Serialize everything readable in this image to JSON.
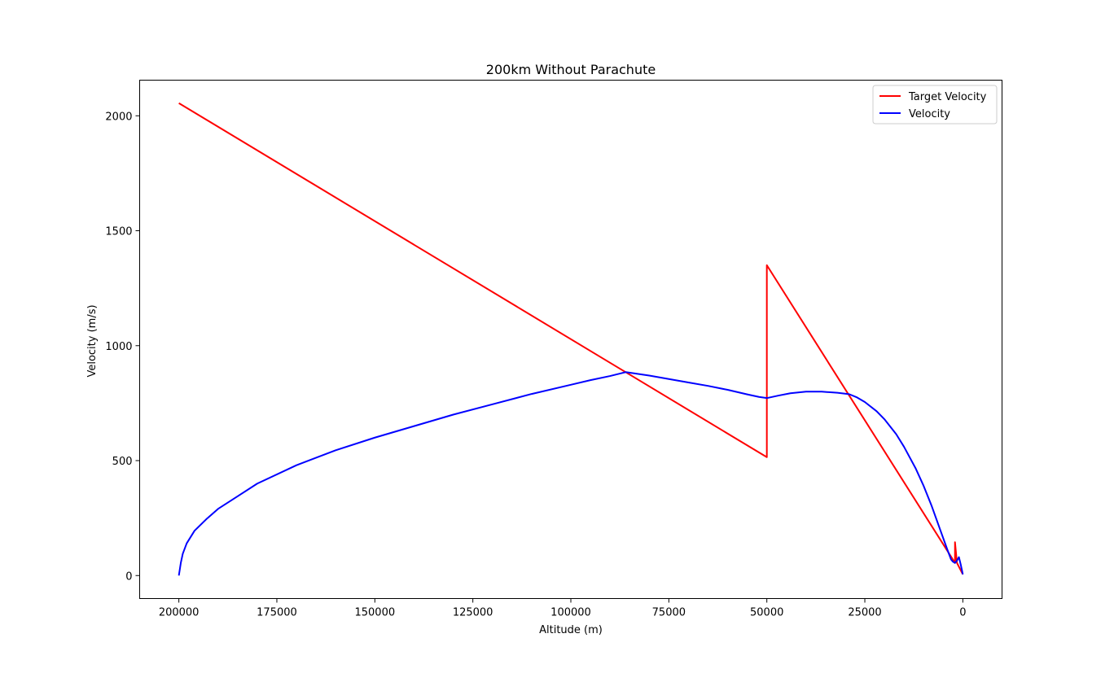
{
  "chart_data": {
    "type": "line",
    "title": "200km Without Parachute",
    "xlabel": "Altitude (m)",
    "ylabel": "Velocity (m/s)",
    "xlim": [
      210000,
      -10000
    ],
    "ylim": [
      -100,
      2155
    ],
    "x_inverted": true,
    "grid": false,
    "legend_position": "top-right",
    "xticks": [
      200000,
      175000,
      150000,
      125000,
      100000,
      75000,
      50000,
      25000,
      0
    ],
    "yticks": [
      0,
      500,
      1000,
      1500,
      2000
    ],
    "series": [
      {
        "name": "Target Velocity",
        "color": "#ff0000",
        "x": [
          200000,
          50000,
          50000,
          2000,
          2000,
          1500,
          0
        ],
        "y": [
          2055,
          515,
          1350,
          55,
          145,
          55,
          5
        ]
      },
      {
        "name": "Velocity",
        "color": "#0000ff",
        "x": [
          200000,
          199500,
          199000,
          198000,
          196000,
          193000,
          190000,
          185000,
          180000,
          170000,
          160000,
          150000,
          140000,
          130000,
          120000,
          110000,
          100000,
          95000,
          90000,
          86000,
          80000,
          75000,
          70000,
          65000,
          60000,
          55000,
          52000,
          50000,
          47000,
          44000,
          40000,
          36000,
          32000,
          29000,
          27000,
          25000,
          22000,
          20000,
          17000,
          15000,
          12000,
          10000,
          8000,
          6000,
          4000,
          3000,
          2500,
          2000,
          1500,
          1000,
          500,
          0
        ],
        "y": [
          0,
          55,
          95,
          140,
          195,
          245,
          290,
          345,
          400,
          480,
          545,
          600,
          650,
          700,
          745,
          790,
          830,
          850,
          868,
          885,
          870,
          855,
          840,
          825,
          808,
          788,
          777,
          772,
          783,
          793,
          800,
          800,
          795,
          789,
          775,
          755,
          715,
          680,
          615,
          560,
          465,
          390,
          305,
          210,
          115,
          70,
          60,
          55,
          65,
          80,
          45,
          5
        ]
      }
    ]
  }
}
